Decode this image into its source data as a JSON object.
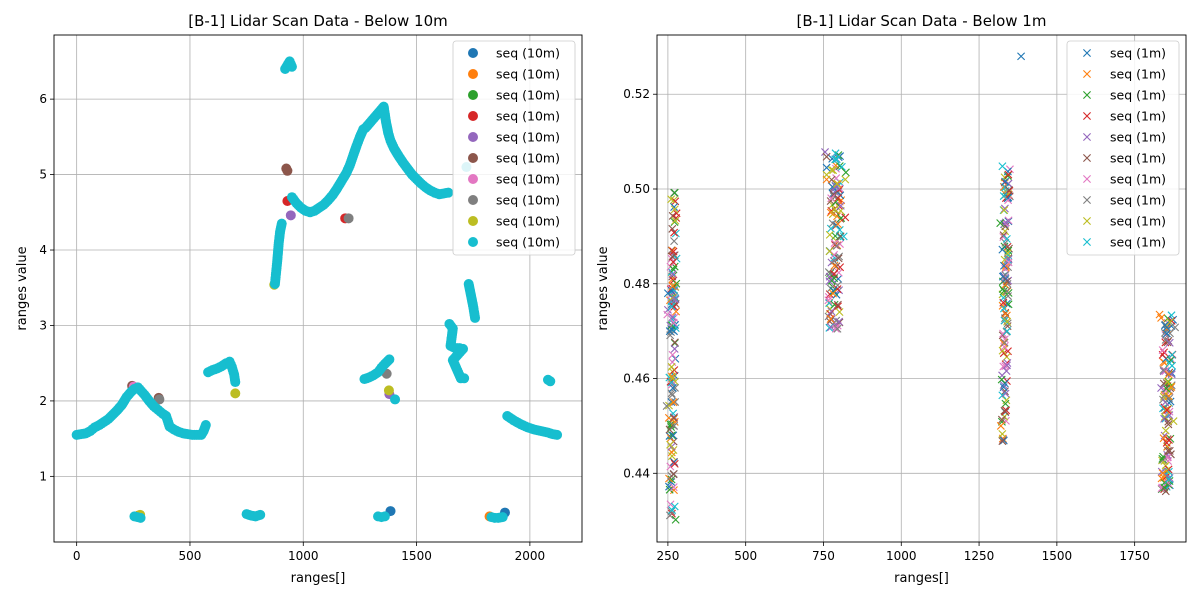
{
  "chart_data": [
    {
      "type": "scatter",
      "title": "[B-1] Lidar Scan Data - Below 10m",
      "xlabel": "ranges[]",
      "ylabel": "ranges value",
      "xlim": [
        -100,
        2230
      ],
      "ylim": [
        0.13,
        6.85
      ],
      "xticks": [
        0,
        500,
        1000,
        1500,
        2000
      ],
      "xtick_labels": [
        "0",
        "500",
        "1000",
        "1500",
        "2000"
      ],
      "yticks": [
        1,
        2,
        3,
        4,
        5,
        6
      ],
      "ytick_labels": [
        "1",
        "2",
        "3",
        "4",
        "5",
        "6"
      ],
      "grid": true,
      "marker": "o",
      "legend_position": "top-right",
      "series": [
        {
          "name": "seq (10m)",
          "color": "#1f77b4",
          "points": [
            [
              1385,
              0.54
            ],
            [
              1890,
              0.52
            ]
          ]
        },
        {
          "name": "seq (10m)",
          "color": "#ff7f0e",
          "points": [
            [
              272,
              0.48
            ],
            [
              1822,
              0.47
            ]
          ]
        },
        {
          "name": "seq (10m)",
          "color": "#2ca02c",
          "points": [
            [
              270,
              0.47
            ]
          ]
        },
        {
          "name": "seq (10m)",
          "color": "#d62728",
          "points": [
            [
              1185,
              4.42
            ],
            [
              930,
              4.65
            ]
          ]
        },
        {
          "name": "seq (10m)",
          "color": "#9467bd",
          "points": [
            [
              945,
              4.46
            ],
            [
              1380,
              2.09
            ]
          ]
        },
        {
          "name": "seq (10m)",
          "color": "#8c564b",
          "points": [
            [
              925,
              5.08
            ],
            [
              930,
              5.05
            ],
            [
              362,
              2.04
            ],
            [
              245,
              2.2
            ]
          ]
        },
        {
          "name": "seq (10m)",
          "color": "#e377c2",
          "points": [
            [
              252,
              2.19
            ]
          ]
        },
        {
          "name": "seq (10m)",
          "color": "#7f7f7f",
          "points": [
            [
              1200,
              4.42
            ],
            [
              1368,
              2.36
            ],
            [
              365,
              2.02
            ]
          ]
        },
        {
          "name": "seq (10m)",
          "color": "#bcbd22",
          "points": [
            [
              700,
              2.1
            ],
            [
              872,
              3.54
            ],
            [
              1378,
              2.14
            ],
            [
              280,
              0.49
            ]
          ]
        },
        {
          "name": "seq (10m)",
          "color": "#17becf",
          "points": [
            [
              0,
              1.55
            ],
            [
              20,
              1.56
            ],
            [
              40,
              1.57
            ],
            [
              60,
              1.6
            ],
            [
              80,
              1.65
            ],
            [
              100,
              1.68
            ],
            [
              120,
              1.72
            ],
            [
              140,
              1.76
            ],
            [
              160,
              1.82
            ],
            [
              180,
              1.88
            ],
            [
              200,
              1.95
            ],
            [
              220,
              2.05
            ],
            [
              240,
              2.12
            ],
            [
              255,
              2.16
            ],
            [
              270,
              2.18
            ],
            [
              285,
              2.13
            ],
            [
              300,
              2.08
            ],
            [
              320,
              2.0
            ],
            [
              340,
              1.93
            ],
            [
              360,
              1.88
            ],
            [
              380,
              1.83
            ],
            [
              395,
              1.8
            ],
            [
              410,
              1.66
            ],
            [
              430,
              1.62
            ],
            [
              450,
              1.59
            ],
            [
              470,
              1.57
            ],
            [
              490,
              1.56
            ],
            [
              510,
              1.55
            ],
            [
              530,
              1.55
            ],
            [
              550,
              1.55
            ],
            [
              560,
              1.6
            ],
            [
              570,
              1.68
            ],
            [
              580,
              2.38
            ],
            [
              600,
              2.41
            ],
            [
              620,
              2.43
            ],
            [
              640,
              2.46
            ],
            [
              660,
              2.5
            ],
            [
              675,
              2.52
            ],
            [
              685,
              2.45
            ],
            [
              695,
              2.35
            ],
            [
              700,
              2.25
            ],
            [
              750,
              0.5
            ],
            [
              770,
              0.48
            ],
            [
              790,
              0.47
            ],
            [
              810,
              0.49
            ],
            [
              1330,
              0.47
            ],
            [
              1345,
              0.46
            ],
            [
              1360,
              0.47
            ],
            [
              1830,
              0.46
            ],
            [
              1845,
              0.45
            ],
            [
              1860,
              0.45
            ],
            [
              1880,
              0.46
            ],
            [
              255,
              0.47
            ],
            [
              268,
              0.46
            ],
            [
              282,
              0.45
            ],
            [
              875,
              3.55
            ],
            [
              880,
              3.7
            ],
            [
              885,
              3.85
            ],
            [
              892,
              4.1
            ],
            [
              898,
              4.25
            ],
            [
              905,
              4.35
            ],
            [
              920,
              6.4
            ],
            [
              930,
              6.45
            ],
            [
              940,
              6.5
            ],
            [
              950,
              6.43
            ],
            [
              950,
              4.7
            ],
            [
              970,
              4.62
            ],
            [
              990,
              4.56
            ],
            [
              1010,
              4.52
            ],
            [
              1030,
              4.5
            ],
            [
              1050,
              4.52
            ],
            [
              1070,
              4.56
            ],
            [
              1090,
              4.6
            ],
            [
              1110,
              4.66
            ],
            [
              1130,
              4.73
            ],
            [
              1150,
              4.82
            ],
            [
              1170,
              4.92
            ],
            [
              1190,
              5.02
            ],
            [
              1205,
              5.12
            ],
            [
              1220,
              5.25
            ],
            [
              1235,
              5.38
            ],
            [
              1250,
              5.5
            ],
            [
              1265,
              5.6
            ],
            [
              1275,
              5.62
            ],
            [
              1355,
              5.9
            ],
            [
              1365,
              5.7
            ],
            [
              1375,
              5.55
            ],
            [
              1385,
              5.45
            ],
            [
              1400,
              5.35
            ],
            [
              1420,
              5.25
            ],
            [
              1440,
              5.16
            ],
            [
              1460,
              5.08
            ],
            [
              1480,
              5.0
            ],
            [
              1500,
              4.94
            ],
            [
              1520,
              4.88
            ],
            [
              1540,
              4.83
            ],
            [
              1560,
              4.79
            ],
            [
              1580,
              4.76
            ],
            [
              1600,
              4.74
            ],
            [
              1620,
              4.75
            ],
            [
              1640,
              4.76
            ],
            [
              1270,
              2.29
            ],
            [
              1290,
              2.31
            ],
            [
              1310,
              2.34
            ],
            [
              1330,
              2.38
            ],
            [
              1345,
              2.44
            ],
            [
              1360,
              2.49
            ],
            [
              1380,
              2.55
            ],
            [
              1405,
              2.02
            ],
            [
              1645,
              3.02
            ],
            [
              1660,
              2.96
            ],
            [
              1650,
              2.73
            ],
            [
              1670,
              2.7
            ],
            [
              1690,
              2.7
            ],
            [
              1705,
              2.69
            ],
            [
              1660,
              2.54
            ],
            [
              1695,
              2.3
            ],
            [
              1710,
              2.3
            ],
            [
              1720,
              5.1
            ],
            [
              1730,
              3.55
            ],
            [
              1740,
              3.4
            ],
            [
              1750,
              3.25
            ],
            [
              1758,
              3.1
            ],
            [
              1900,
              1.8
            ],
            [
              1930,
              1.74
            ],
            [
              1960,
              1.69
            ],
            [
              1990,
              1.65
            ],
            [
              2020,
              1.62
            ],
            [
              2050,
              1.6
            ],
            [
              2080,
              1.58
            ],
            [
              2100,
              1.56
            ],
            [
              2120,
              1.55
            ],
            [
              2080,
              2.28
            ],
            [
              2090,
              2.26
            ]
          ]
        }
      ]
    },
    {
      "type": "scatter",
      "title": "[B-1] Lidar Scan Data - Below 1m",
      "xlabel": "ranges[]",
      "ylabel": "ranges value",
      "xlim": [
        215,
        1915
      ],
      "ylim": [
        0.4255,
        0.5325
      ],
      "xticks": [
        250,
        500,
        750,
        1000,
        1250,
        1500,
        1750
      ],
      "xtick_labels": [
        "250",
        "500",
        "750",
        "1000",
        "1250",
        "1500",
        "1750"
      ],
      "yticks": [
        0.44,
        0.46,
        0.48,
        0.5,
        0.52
      ],
      "ytick_labels": [
        "0.44",
        "0.46",
        "0.48",
        "0.50",
        "0.52"
      ],
      "grid": true,
      "marker": "x",
      "legend_position": "top-right",
      "series": [
        {
          "name": "seq (1m)",
          "color": "#1f77b4",
          "points": [
            [
              250,
              0.478
            ],
            [
              262,
              0.4785
            ],
            [
              270,
              0.4962
            ],
            [
              1385,
              0.528
            ],
            [
              1325,
              0.4872
            ],
            [
              1330,
              0.4838
            ],
            [
              1335,
              0.481
            ],
            [
              760,
              0.5045
            ],
            [
              256,
              0.47
            ],
            [
              266,
              0.458
            ]
          ]
        },
        {
          "name": "seq (1m)",
          "color": "#ff7f0e",
          "points": [
            [
              265,
              0.4795
            ],
            [
              1830,
              0.4735
            ],
            [
              1835,
              0.4728
            ],
            [
              1320,
              0.45
            ],
            [
              760,
              0.502
            ],
            [
              268,
              0.455
            ],
            [
              1840,
              0.44
            ]
          ]
        },
        {
          "name": "seq (1m)",
          "color": "#2ca02c",
          "points": [
            [
              272,
              0.4992
            ],
            [
              275,
              0.4302
            ],
            [
              822,
              0.5035
            ],
            [
              1318,
              0.4928
            ],
            [
              268,
              0.483
            ],
            [
              1845,
              0.437
            ]
          ]
        },
        {
          "name": "seq (1m)",
          "color": "#d62728",
          "points": [
            [
              270,
              0.4908
            ],
            [
              268,
              0.4868
            ],
            [
              1328,
              0.476
            ],
            [
              820,
              0.494
            ],
            [
              1840,
              0.465
            ],
            [
              272,
              0.442
            ]
          ]
        },
        {
          "name": "seq (1m)",
          "color": "#9467bd",
          "points": [
            [
              755,
              0.5078
            ],
            [
              250,
              0.4745
            ],
            [
              1345,
              0.4852
            ],
            [
              265,
              0.482
            ],
            [
              1835,
              0.458
            ],
            [
              800,
              0.472
            ]
          ]
        },
        {
          "name": "seq (1m)",
          "color": "#8c564b",
          "points": [
            [
              760,
              0.5068
            ],
            [
              1850,
              0.4362
            ],
            [
              1325,
              0.4468
            ],
            [
              1340,
              0.4805
            ],
            [
              268,
              0.4398
            ],
            [
              805,
              0.49
            ]
          ]
        },
        {
          "name": "seq (1m)",
          "color": "#e377c2",
          "points": [
            [
              248,
              0.4735
            ],
            [
              1345,
              0.4845
            ],
            [
              1840,
              0.466
            ],
            [
              790,
              0.4705
            ],
            [
              265,
              0.465
            ]
          ]
        },
        {
          "name": "seq (1m)",
          "color": "#7f7f7f",
          "points": [
            [
              270,
              0.489
            ],
            [
              246,
              0.4542
            ],
            [
              1880,
              0.4708
            ],
            [
              1340,
              0.4785
            ],
            [
              795,
              0.4705
            ],
            [
              270,
              0.45
            ]
          ]
        },
        {
          "name": "seq (1m)",
          "color": "#bcbd22",
          "points": [
            [
              272,
              0.4957
            ],
            [
              760,
              0.503
            ],
            [
              820,
              0.502
            ],
            [
              1340,
              0.472
            ],
            [
              1850,
              0.449
            ],
            [
              1875,
              0.451
            ],
            [
              265,
              0.46
            ]
          ]
        },
        {
          "name": "seq (1m)",
          "color": "#17becf",
          "points": [
            [
              1325,
              0.5048
            ],
            [
              262,
              0.4752
            ],
            [
              815,
              0.49
            ],
            [
              1870,
              0.465
            ],
            [
              272,
              0.433
            ],
            [
              1340,
              0.47
            ]
          ]
        }
      ],
      "clusters": [
        {
          "x": [
            245,
            285
          ],
          "y": [
            0.4305,
            0.4995
          ]
        },
        {
          "x": [
            750,
            825
          ],
          "y": [
            0.4702,
            0.5078
          ]
        },
        {
          "x": [
            1315,
            1355
          ],
          "y": [
            0.4468,
            0.5048
          ]
        },
        {
          "x": [
            1825,
            1885
          ],
          "y": [
            0.4362,
            0.4735
          ]
        }
      ]
    }
  ]
}
